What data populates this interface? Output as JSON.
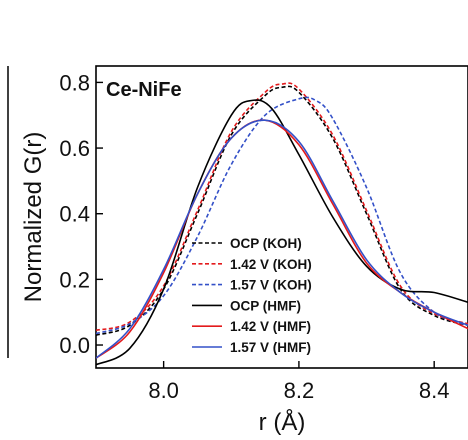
{
  "chart_data": {
    "type": "line",
    "panel_label": "Ce-NiFe",
    "xlabel": "r (Å)",
    "ylabel": "Normalized G(r)",
    "xlim": [
      7.9,
      8.45
    ],
    "ylim": [
      -0.07,
      0.85
    ],
    "xticks": [
      8.0,
      8.2,
      8.4
    ],
    "xtick_labels": [
      "8.0",
      "8.2",
      "8.4"
    ],
    "yticks": [
      0.0,
      0.2,
      0.4,
      0.6,
      0.8
    ],
    "ytick_labels": [
      "0.0",
      "0.2",
      "0.4",
      "0.6",
      "0.8"
    ],
    "grid": false,
    "legend_position": "bottom-right",
    "series": [
      {
        "name": "OCP (KOH)",
        "color": "#000000",
        "dash": "dashed",
        "x": [
          7.9,
          7.95,
          8.0,
          8.05,
          8.1,
          8.15,
          8.175,
          8.2,
          8.25,
          8.3,
          8.35,
          8.4,
          8.45
        ],
        "y": [
          0.03,
          0.06,
          0.17,
          0.4,
          0.64,
          0.76,
          0.785,
          0.77,
          0.63,
          0.4,
          0.17,
          0.09,
          0.06
        ]
      },
      {
        "name": "1.42 V (KOH)",
        "color": "#e31a1c",
        "dash": "dashed",
        "x": [
          7.9,
          7.95,
          8.0,
          8.05,
          8.1,
          8.15,
          8.175,
          8.2,
          8.25,
          8.3,
          8.35,
          8.4,
          8.45
        ],
        "y": [
          0.045,
          0.07,
          0.18,
          0.41,
          0.65,
          0.77,
          0.795,
          0.78,
          0.64,
          0.41,
          0.18,
          0.095,
          0.065
        ]
      },
      {
        "name": "1.57 V (KOH)",
        "color": "#3350c8",
        "dash": "dashed",
        "x": [
          7.9,
          7.95,
          8.0,
          8.05,
          8.1,
          8.15,
          8.2,
          8.225,
          8.25,
          8.3,
          8.35,
          8.4,
          8.45
        ],
        "y": [
          0.035,
          0.065,
          0.15,
          0.33,
          0.55,
          0.7,
          0.75,
          0.745,
          0.69,
          0.48,
          0.22,
          0.1,
          0.06
        ]
      },
      {
        "name": "OCP (HMF)",
        "color": "#000000",
        "dash": "solid",
        "x": [
          7.9,
          7.95,
          8.0,
          8.05,
          8.1,
          8.13,
          8.16,
          8.2,
          8.25,
          8.3,
          8.35,
          8.4,
          8.45
        ],
        "y": [
          -0.06,
          -0.01,
          0.17,
          0.48,
          0.7,
          0.745,
          0.72,
          0.58,
          0.39,
          0.24,
          0.17,
          0.16,
          0.13
        ]
      },
      {
        "name": "1.42 V (HMF)",
        "color": "#e31a1c",
        "dash": "solid",
        "x": [
          7.9,
          7.95,
          8.0,
          8.05,
          8.1,
          8.15,
          8.2,
          8.25,
          8.3,
          8.35,
          8.4,
          8.45
        ],
        "y": [
          -0.04,
          0.04,
          0.22,
          0.46,
          0.63,
          0.685,
          0.61,
          0.43,
          0.25,
          0.16,
          0.1,
          0.05
        ]
      },
      {
        "name": "1.57 V (HMF)",
        "color": "#3350c8",
        "dash": "solid",
        "x": [
          7.9,
          7.95,
          8.0,
          8.05,
          8.1,
          8.15,
          8.2,
          8.25,
          8.3,
          8.35,
          8.4,
          8.45
        ],
        "y": [
          -0.04,
          0.05,
          0.23,
          0.46,
          0.63,
          0.685,
          0.62,
          0.44,
          0.26,
          0.16,
          0.1,
          0.06
        ]
      }
    ]
  }
}
